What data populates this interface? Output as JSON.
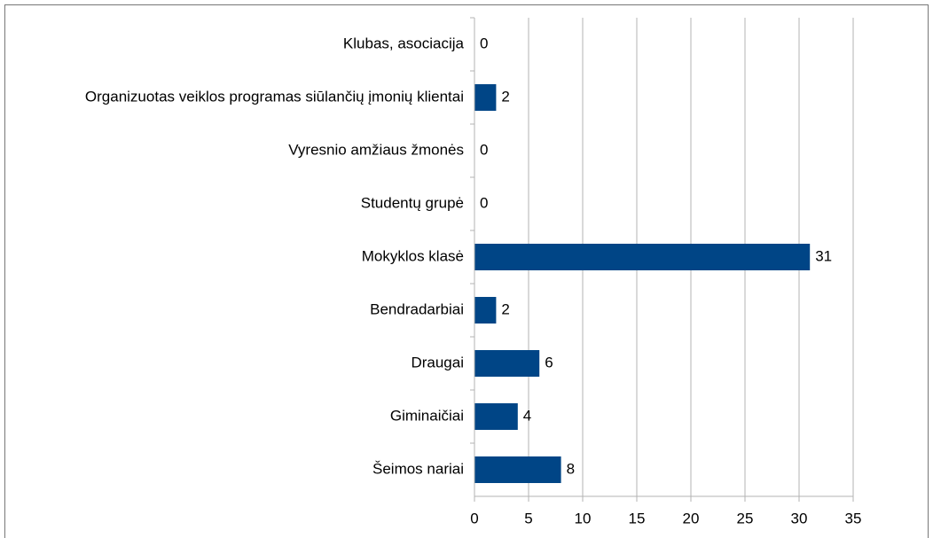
{
  "chart_data": {
    "type": "barh",
    "categories": [
      "Klubas, asociacija",
      "Organizuotas veiklos programas siūlančių įmonių klientai",
      "Vyresnio amžiaus žmonės",
      "Studentų grupė",
      "Mokyklos klasė",
      "Bendradarbiai",
      "Draugai",
      "Giminaičiai",
      "Šeimos nariai"
    ],
    "values": [
      0,
      2,
      0,
      0,
      31,
      2,
      6,
      4,
      8
    ],
    "color": "#004586",
    "xlim": [
      0,
      35
    ],
    "xticks": [
      0,
      5,
      10,
      15,
      20,
      25,
      30,
      35
    ],
    "grid": true
  }
}
